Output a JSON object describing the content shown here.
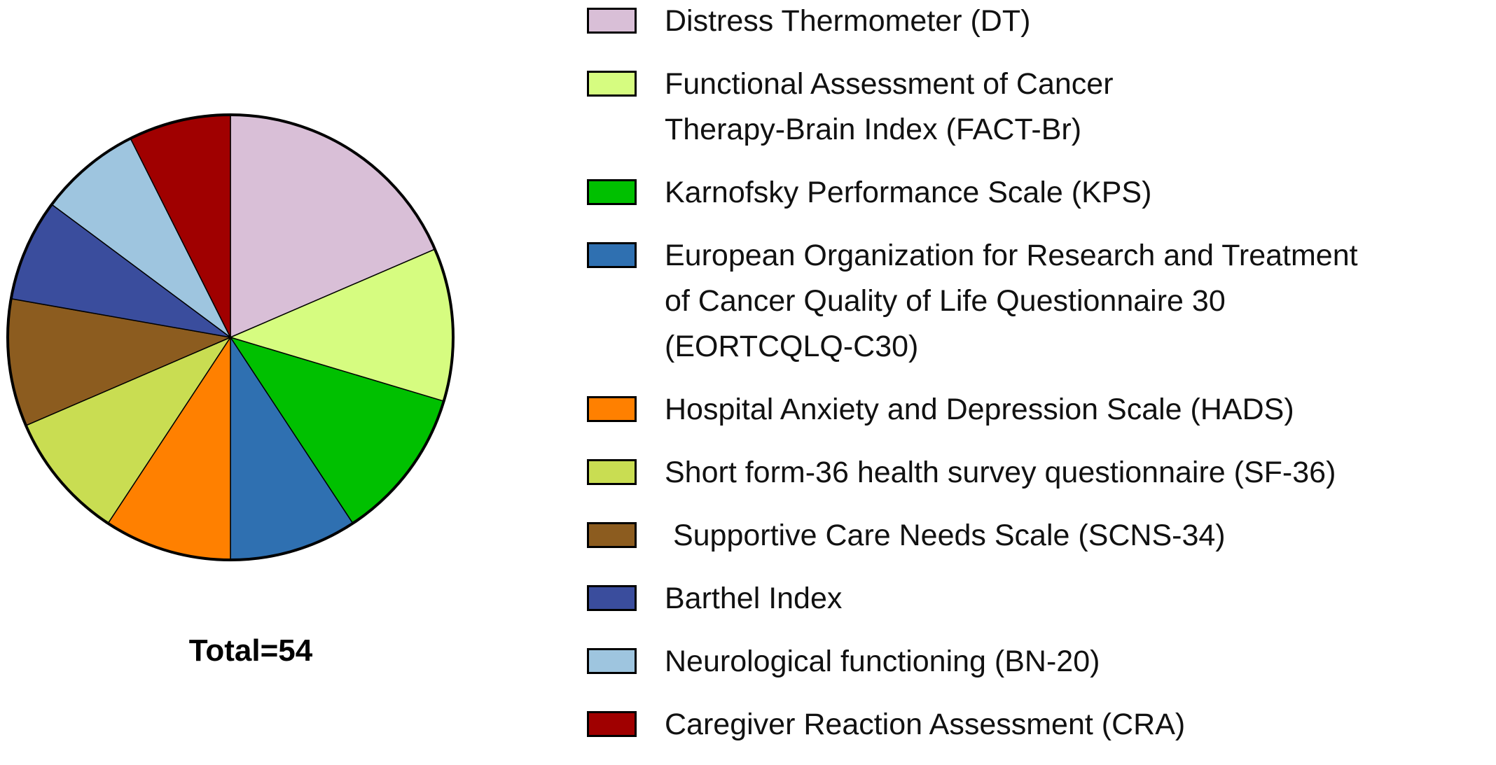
{
  "chart_data": {
    "type": "pie",
    "categories": [
      "Distress Thermometer (DT)",
      "Functional Assessment of Cancer\nTherapy-Brain Index (FACT-Br)",
      "Karnofsky Performance Scale (KPS)",
      "European Organization for Research and Treatment\nof Cancer Quality of Life Questionnaire 30\n(EORTCQLQ-C30)",
      "Hospital Anxiety and Depression Scale (HADS)",
      "Short form-36 health survey questionnaire (SF-36)",
      " Supportive Care Needs Scale (SCNS-34)",
      "Barthel Index",
      "Neurological functioning (BN-20)",
      "Caregiver Reaction Assessment (CRA)"
    ],
    "values": [
      10,
      6,
      6,
      5,
      5,
      5,
      5,
      4,
      4,
      4
    ],
    "colors": [
      "#d9bfd7",
      "#d6fc80",
      "#00c000",
      "#2f70b1",
      "#ff8000",
      "#c9dd52",
      "#8c5c1f",
      "#3a4d9d",
      "#9ec5df",
      "#a00000"
    ],
    "annotation": "Total=54"
  }
}
